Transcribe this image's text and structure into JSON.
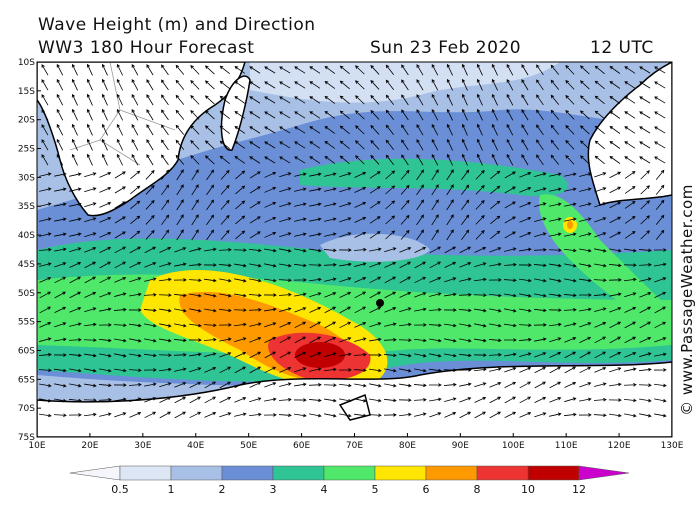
{
  "header": {
    "title": "Wave Height (m) and Direction",
    "subtitle": "WW3 180 Hour Forecast",
    "date": "Sun 23 Feb 2020",
    "time": "12 UTC"
  },
  "map": {
    "lat_labels": [
      "10S",
      "15S",
      "20S",
      "25S",
      "30S",
      "35S",
      "40S",
      "45S",
      "50S",
      "55S",
      "60S",
      "65S",
      "70S",
      "75S"
    ],
    "lon_labels": [
      "10E",
      "20E",
      "30E",
      "40E",
      "50E",
      "60E",
      "70E",
      "80E",
      "90E",
      "100E",
      "110E",
      "120E",
      "130E"
    ]
  },
  "legend": {
    "labels": [
      "0.5",
      "1",
      "2",
      "3",
      "4",
      "5",
      "6",
      "8",
      "10",
      "12"
    ]
  },
  "credit": "© www.PassageWeather.com"
}
